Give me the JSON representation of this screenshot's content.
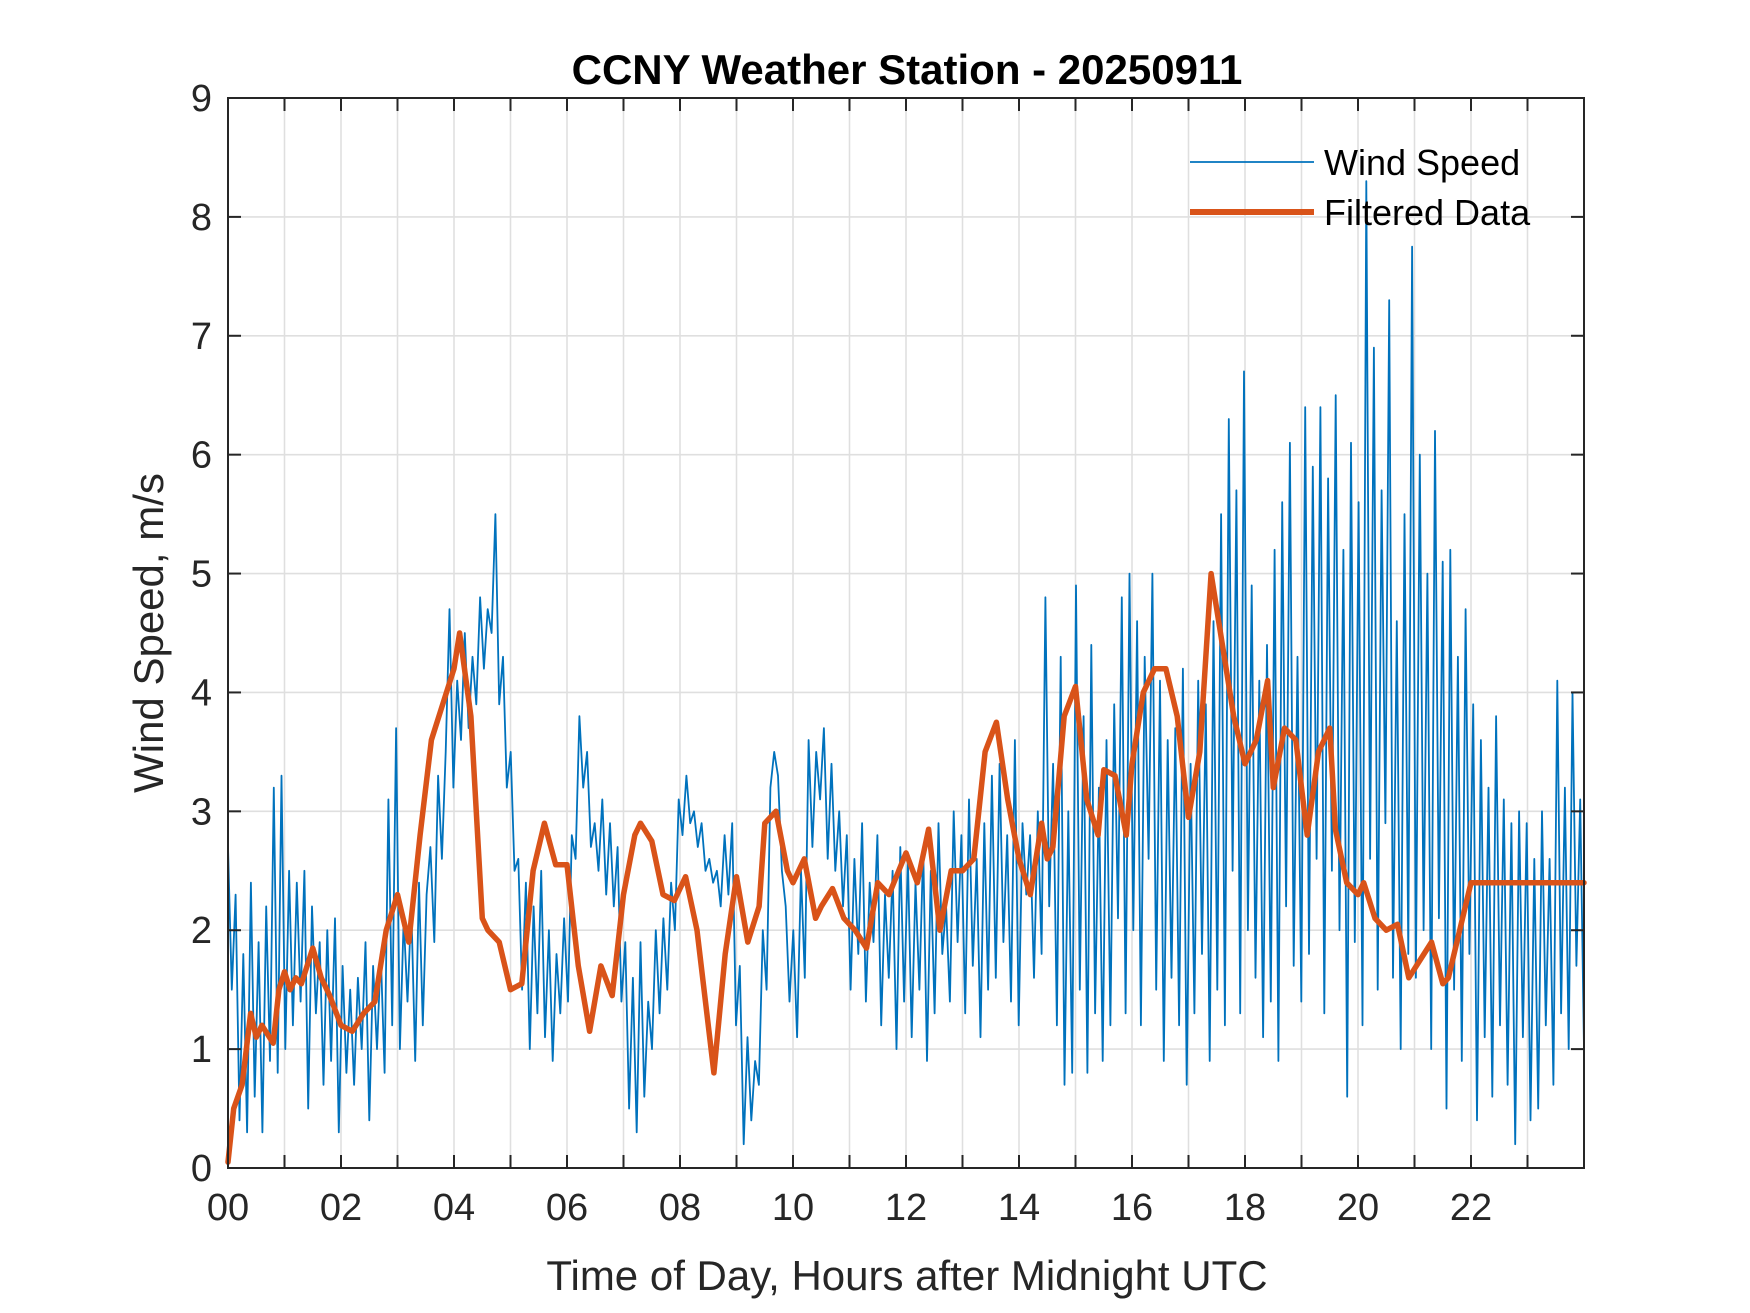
{
  "chart_data": {
    "type": "line",
    "title": "CCNY Weather Station - 20250911",
    "xlabel": "Time of Day, Hours after Midnight UTC",
    "ylabel": "Wind Speed, m/s",
    "xlim": [
      0,
      24
    ],
    "ylim": [
      0,
      9
    ],
    "grid": true,
    "x_ticks": [
      0,
      2,
      4,
      6,
      8,
      10,
      12,
      14,
      16,
      18,
      20,
      22
    ],
    "x_tick_labels": [
      "00",
      "02",
      "04",
      "06",
      "08",
      "10",
      "12",
      "14",
      "16",
      "18",
      "20",
      "22"
    ],
    "x_minor_grid_step": 1,
    "y_ticks": [
      0,
      1,
      2,
      3,
      4,
      5,
      6,
      7,
      8,
      9
    ],
    "y_tick_labels": [
      "0",
      "1",
      "2",
      "3",
      "4",
      "5",
      "6",
      "7",
      "8",
      "9"
    ],
    "legend": {
      "placement": "top-right",
      "entries": [
        "Wind Speed",
        "Filtered Data"
      ]
    },
    "series": [
      {
        "name": "Wind Speed",
        "color": "#0072BD",
        "x_step": 0.05,
        "x_start": 0,
        "values": [
          2.7,
          1.5,
          2.3,
          0.4,
          1.8,
          0.3,
          2.4,
          0.6,
          1.9,
          0.3,
          2.2,
          0.9,
          3.2,
          0.8,
          3.3,
          1.0,
          2.5,
          1.2,
          2.4,
          1.4,
          2.5,
          0.5,
          2.2,
          1.3,
          1.9,
          0.7,
          2.0,
          0.9,
          2.1,
          0.3,
          1.7,
          0.8,
          1.5,
          0.7,
          1.6,
          1.0,
          1.9,
          0.4,
          1.7,
          1.0,
          1.8,
          0.8,
          3.1,
          1.2,
          3.7,
          1.0,
          2.1,
          1.4,
          2.2,
          0.9,
          2.4,
          1.2,
          2.3,
          2.7,
          1.9,
          3.3,
          2.6,
          3.5,
          4.7,
          3.2,
          4.1,
          3.6,
          4.5,
          3.7,
          4.3,
          3.9,
          4.8,
          4.2,
          4.7,
          4.5,
          5.5,
          3.9,
          4.3,
          3.2,
          3.5,
          2.5,
          2.6,
          1.5,
          2.4,
          1.0,
          2.2,
          1.3,
          2.5,
          1.1,
          2.0,
          0.9,
          1.8,
          1.3,
          2.1,
          1.4,
          2.8,
          2.6,
          3.8,
          3.2,
          3.5,
          2.7,
          2.9,
          2.5,
          3.1,
          2.3,
          2.9,
          2.2,
          2.7,
          1.4,
          1.9,
          0.5,
          1.6,
          0.3,
          1.9,
          0.6,
          1.4,
          1.0,
          2.0,
          1.3,
          2.1,
          1.5,
          2.4,
          2.0,
          3.1,
          2.8,
          3.3,
          2.9,
          3.0,
          2.7,
          2.9,
          2.5,
          2.6,
          2.4,
          2.5,
          2.2,
          2.8,
          2.3,
          2.9,
          1.2,
          1.7,
          0.2,
          1.1,
          0.4,
          0.9,
          0.7,
          2.0,
          1.5,
          3.2,
          3.5,
          3.3,
          2.5,
          2.2,
          1.4,
          2.0,
          1.1,
          2.5,
          1.6,
          3.6,
          2.7,
          3.5,
          3.1,
          3.7,
          2.6,
          3.4,
          2.5,
          3.0,
          2.2,
          2.8,
          1.5,
          2.6,
          1.8,
          2.9,
          1.4,
          2.4,
          1.9,
          2.8,
          1.2,
          2.3,
          1.6,
          2.5,
          1.0,
          2.7,
          1.4,
          2.6,
          1.1,
          2.4,
          1.5,
          2.7,
          0.9,
          2.5,
          1.3,
          2.9,
          1.8,
          2.2,
          1.4,
          3.0,
          1.9,
          2.8,
          1.3,
          3.1,
          1.7,
          2.6,
          1.1,
          2.9,
          1.5,
          3.3,
          1.6,
          3.4,
          1.9,
          2.8,
          1.4,
          3.6,
          1.2,
          2.9,
          2.3,
          2.8,
          1.6,
          3.0,
          1.8,
          4.8,
          2.2,
          3.4,
          1.2,
          4.3,
          0.7,
          3.0,
          0.8,
          4.9,
          1.5,
          3.8,
          0.8,
          4.4,
          1.3,
          3.2,
          0.9,
          3.6,
          1.2,
          3.9,
          2.1,
          4.8,
          1.3,
          5.0,
          2.0,
          4.6,
          1.2,
          4.3,
          2.6,
          5.0,
          1.5,
          4.1,
          0.9,
          3.6,
          1.6,
          3.7,
          1.2,
          4.2,
          0.7,
          3.4,
          1.3,
          4.1,
          1.8,
          3.9,
          0.9,
          4.6,
          1.5,
          5.5,
          1.2,
          6.3,
          2.5,
          5.7,
          1.3,
          6.7,
          2.0,
          4.9,
          1.6,
          4.1,
          1.1,
          4.4,
          1.4,
          5.2,
          0.9,
          5.6,
          2.2,
          6.1,
          1.7,
          4.3,
          1.4,
          6.4,
          1.8,
          5.9,
          2.6,
          6.4,
          1.3,
          5.8,
          2.5,
          6.5,
          2.0,
          5.2,
          0.6,
          6.1,
          1.9,
          5.6,
          1.2,
          8.3,
          2.6,
          6.9,
          1.5,
          5.7,
          2.9,
          7.3,
          1.6,
          4.6,
          1.0,
          5.5,
          1.8,
          7.75,
          1.6,
          6.0,
          2.0,
          5.0,
          1.0,
          6.2,
          2.1,
          5.1,
          0.5,
          5.2,
          1.5,
          4.3,
          0.9,
          4.7,
          1.8,
          3.9,
          0.4,
          3.6,
          1.1,
          3.2,
          0.6,
          3.8,
          1.2,
          3.1,
          0.7,
          2.9,
          0.2,
          3.0,
          1.1,
          2.9,
          0.4,
          2.6,
          0.5,
          3.0,
          1.2,
          2.6,
          0.7,
          4.1,
          1.3,
          3.2,
          1.0,
          4.0,
          1.7,
          3.1,
          1.0
        ]
      },
      {
        "name": "Filtered Data",
        "color": "#D95319",
        "x": [
          0.0,
          0.1,
          0.25,
          0.4,
          0.5,
          0.6,
          0.8,
          0.9,
          1.0,
          1.1,
          1.2,
          1.3,
          1.5,
          1.65,
          1.8,
          2.0,
          2.2,
          2.4,
          2.6,
          2.8,
          3.0,
          3.1,
          3.2,
          3.4,
          3.6,
          3.8,
          4.0,
          4.1,
          4.3,
          4.5,
          4.6,
          4.8,
          5.0,
          5.2,
          5.4,
          5.6,
          5.8,
          5.9,
          6.0,
          6.2,
          6.4,
          6.6,
          6.8,
          7.0,
          7.2,
          7.3,
          7.5,
          7.7,
          7.9,
          8.1,
          8.3,
          8.6,
          8.8,
          9.0,
          9.2,
          9.4,
          9.5,
          9.7,
          9.9,
          10.0,
          10.2,
          10.4,
          10.5,
          10.7,
          10.9,
          11.1,
          11.3,
          11.5,
          11.7,
          12.0,
          12.2,
          12.4,
          12.6,
          12.8,
          13.0,
          13.2,
          13.4,
          13.6,
          13.8,
          14.0,
          14.2,
          14.4,
          14.5,
          14.6,
          14.8,
          15.0,
          15.2,
          15.4,
          15.5,
          15.7,
          15.9,
          16.0,
          16.2,
          16.4,
          16.6,
          16.8,
          17.0,
          17.2,
          17.4,
          17.6,
          17.8,
          18.0,
          18.2,
          18.4,
          18.5,
          18.7,
          18.9,
          19.1,
          19.3,
          19.5,
          19.6,
          19.8,
          20.0,
          20.1,
          20.3,
          20.5,
          20.7,
          20.9,
          21.1,
          21.3,
          21.5,
          21.6,
          21.8,
          22.0,
          22.2,
          22.4,
          22.6,
          22.8,
          23.0,
          23.2,
          23.4,
          23.6,
          23.8,
          24.0
        ],
        "values": [
          0.05,
          0.5,
          0.7,
          1.3,
          1.1,
          1.2,
          1.05,
          1.5,
          1.65,
          1.5,
          1.6,
          1.55,
          1.85,
          1.6,
          1.45,
          1.2,
          1.15,
          1.3,
          1.4,
          2.0,
          2.3,
          2.1,
          1.9,
          2.8,
          3.6,
          3.9,
          4.2,
          4.5,
          3.8,
          2.1,
          2.0,
          1.9,
          1.5,
          1.55,
          2.5,
          2.9,
          2.55,
          2.55,
          2.55,
          1.7,
          1.15,
          1.7,
          1.45,
          2.3,
          2.8,
          2.9,
          2.75,
          2.3,
          2.25,
          2.45,
          2.0,
          0.8,
          1.8,
          2.45,
          1.9,
          2.2,
          2.9,
          3.0,
          2.5,
          2.4,
          2.6,
          2.1,
          2.2,
          2.35,
          2.1,
          2.0,
          1.85,
          2.4,
          2.3,
          2.65,
          2.4,
          2.85,
          2.0,
          2.5,
          2.5,
          2.6,
          3.5,
          3.75,
          3.1,
          2.6,
          2.3,
          2.9,
          2.6,
          2.7,
          3.8,
          4.05,
          3.1,
          2.8,
          3.35,
          3.3,
          2.8,
          3.4,
          4.0,
          4.2,
          4.2,
          3.8,
          2.95,
          3.5,
          5.0,
          4.4,
          3.8,
          3.4,
          3.6,
          4.1,
          3.2,
          3.7,
          3.6,
          2.8,
          3.5,
          3.7,
          2.85,
          2.4,
          2.3,
          2.4,
          2.1,
          2.0,
          2.05,
          1.6,
          1.75,
          1.9,
          1.55,
          1.6,
          2.0,
          2.4,
          2.4,
          2.4,
          2.4,
          2.4,
          2.4,
          2.4,
          2.4,
          2.4,
          2.4,
          2.4
        ]
      }
    ]
  }
}
